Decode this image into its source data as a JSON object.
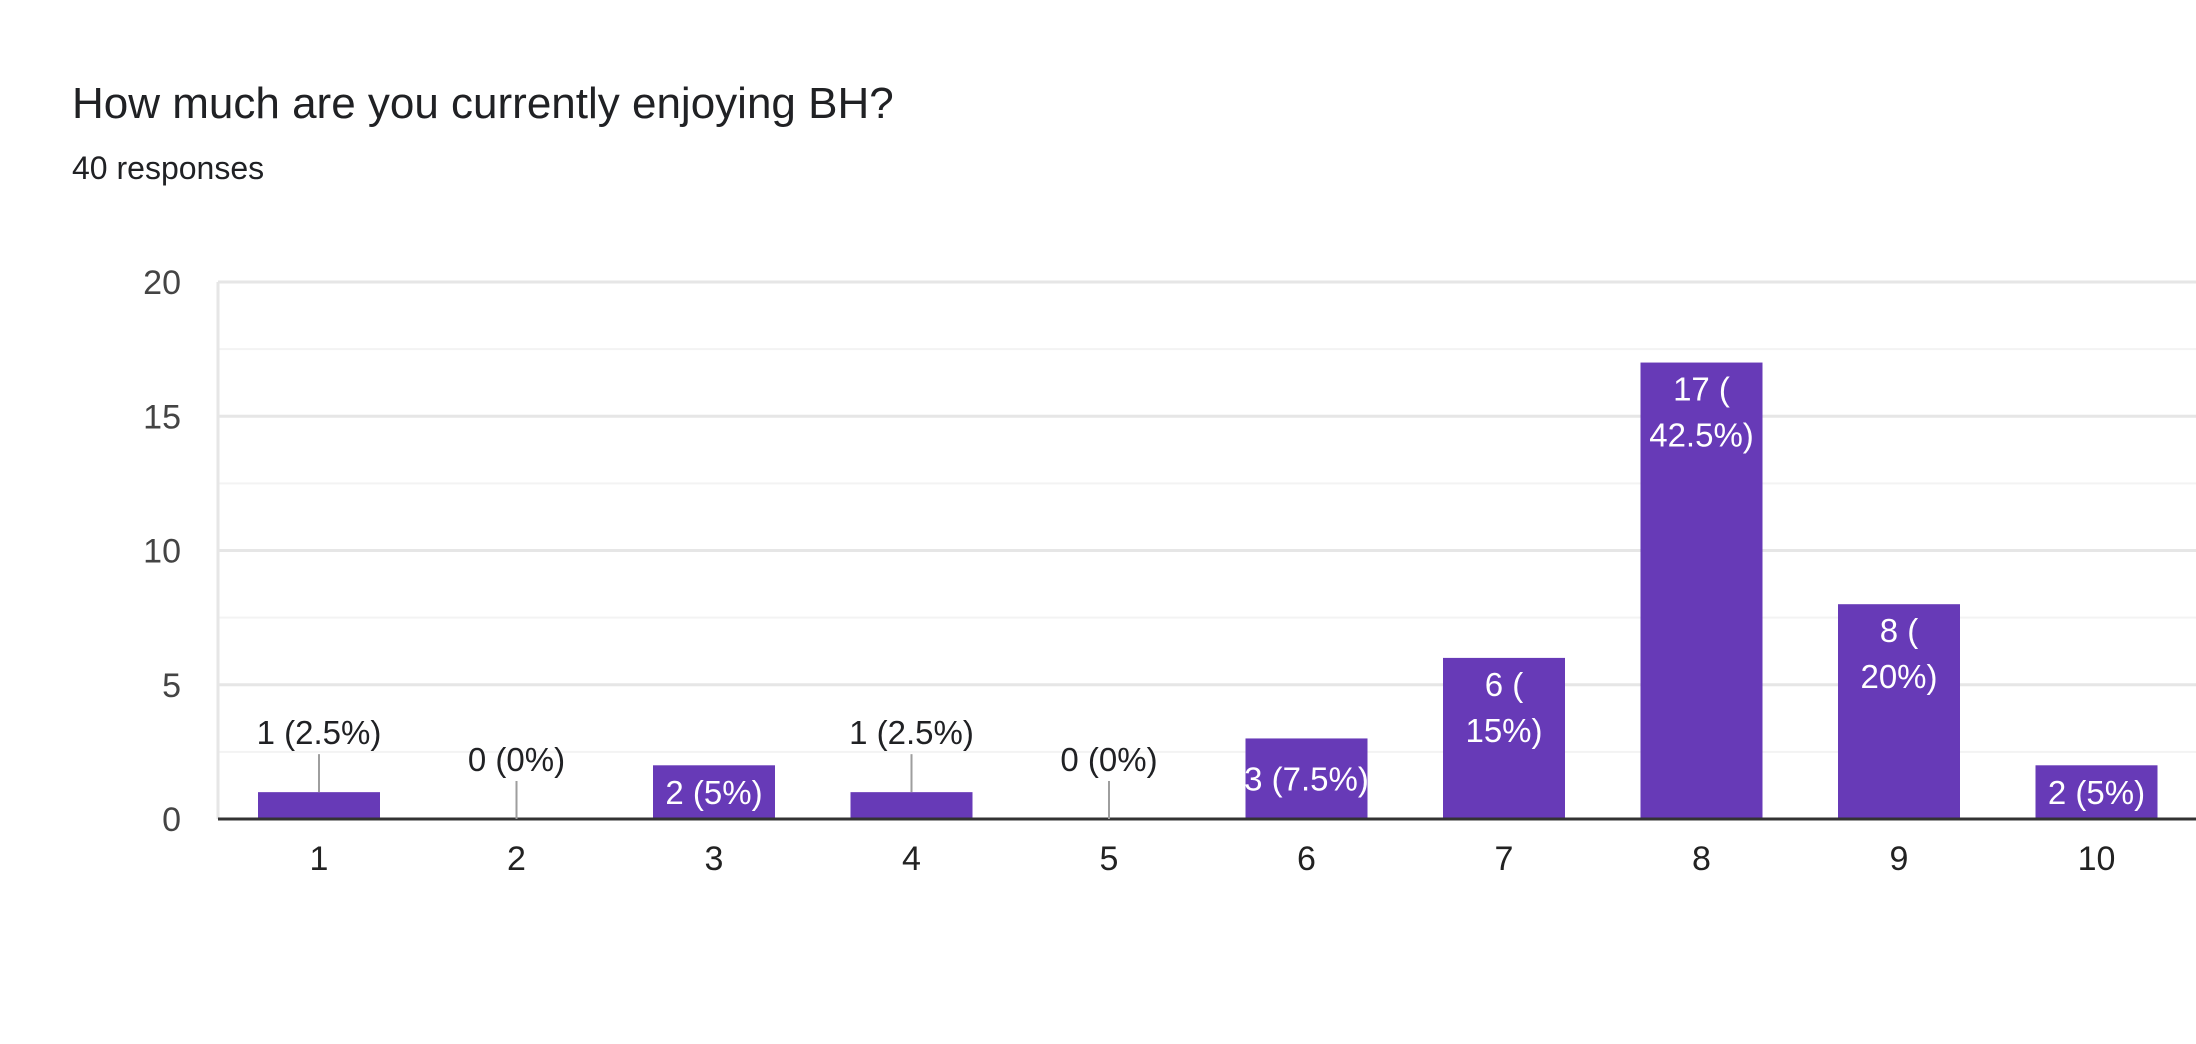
{
  "header": {
    "title": "How much are you currently enjoying BH?",
    "subtitle": "40 responses"
  },
  "chart_data": {
    "type": "bar",
    "title": "How much are you currently enjoying BH?",
    "categories": [
      "1",
      "2",
      "3",
      "4",
      "5",
      "6",
      "7",
      "8",
      "9",
      "10"
    ],
    "values": [
      1,
      0,
      2,
      1,
      0,
      3,
      6,
      17,
      8,
      2
    ],
    "data_labels": [
      "1 (2.5%)",
      "0 (0%)",
      "2 (5%)",
      "1 (2.5%)",
      "0 (0%)",
      "3 (7.5%)",
      "6 (15%)",
      "17 (42.5%)",
      "8 (20%)",
      "2 (5%)"
    ],
    "ylim": [
      0,
      20
    ],
    "yticks": [
      "0",
      "5",
      "10",
      "15",
      "20"
    ],
    "grid": true,
    "colors": {
      "bar": "#673ab7",
      "grid_major": "#e6e6e6",
      "grid_minor": "#f3f3f3",
      "axis": "#333333",
      "label_inside": "#ffffff",
      "label_outside": "#202124",
      "leader": "#9e9e9e"
    }
  }
}
